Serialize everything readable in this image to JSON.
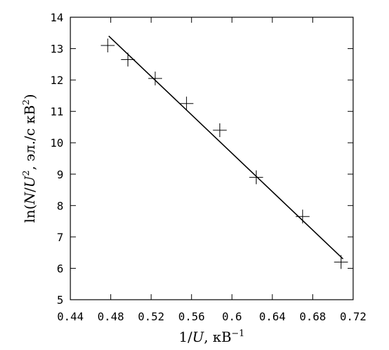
{
  "chart_data": {
    "type": "scatter",
    "title": "",
    "xlabel_parts": [
      "1/",
      "U",
      ", кВ",
      "−1"
    ],
    "ylabel_parts": [
      "ln(",
      "N",
      "/",
      "U",
      "2",
      ", эл./с кВ",
      "2",
      ")"
    ],
    "xlim": [
      0.44,
      0.72
    ],
    "ylim": [
      5,
      14
    ],
    "xticks": [
      0.44,
      0.48,
      0.52,
      0.56,
      0.6,
      0.64,
      0.68,
      0.72
    ],
    "xtick_labels": [
      "0.44",
      "0.48",
      "0.52",
      "0.56",
      "0.6",
      "0.64",
      "0.68",
      "0.72"
    ],
    "yticks": [
      5,
      6,
      7,
      8,
      9,
      10,
      11,
      12,
      13,
      14
    ],
    "ytick_labels": [
      "5",
      "6",
      "7",
      "8",
      "9",
      "10",
      "11",
      "12",
      "13",
      "14"
    ],
    "grid": false,
    "legend": "none",
    "series": [
      {
        "marker": "plus",
        "x": [
          0.477,
          0.497,
          0.524,
          0.555,
          0.588,
          0.624,
          0.67,
          0.708
        ],
        "y": [
          13.1,
          12.65,
          12.05,
          11.25,
          10.4,
          8.9,
          7.65,
          6.2
        ]
      }
    ],
    "fit_line": {
      "x": [
        0.478,
        0.71
      ],
      "y": [
        13.4,
        6.3
      ]
    },
    "colors": {
      "marks": "#000000",
      "background": "#ffffff"
    }
  }
}
